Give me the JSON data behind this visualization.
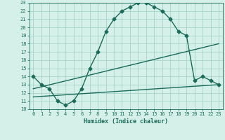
{
  "line1_x": [
    0,
    1,
    2,
    3,
    4,
    5,
    6,
    7,
    8,
    9,
    10,
    11,
    12,
    13,
    14,
    15,
    16,
    17,
    18,
    19,
    20,
    21,
    22,
    23
  ],
  "line1_y": [
    14,
    13,
    12.5,
    11,
    10.5,
    11,
    12.5,
    15,
    17,
    19.5,
    21,
    22,
    22.5,
    23,
    23,
    22.5,
    22,
    21,
    19.5,
    19,
    13.5,
    14,
    13.5,
    13
  ],
  "line2_x": [
    0,
    23
  ],
  "line2_y": [
    12.5,
    18
  ],
  "line3_x": [
    0,
    23
  ],
  "line3_y": [
    11.5,
    13
  ],
  "line_color": "#1a6b5a",
  "bg_color": "#d4f0e8",
  "grid_color": "#a0cfc0",
  "xlabel": "Humidex (Indice chaleur)",
  "xlim": [
    -0.5,
    23.5
  ],
  "ylim": [
    10,
    23
  ],
  "xticks": [
    0,
    1,
    2,
    3,
    4,
    5,
    6,
    7,
    8,
    9,
    10,
    11,
    12,
    13,
    14,
    15,
    16,
    17,
    18,
    19,
    20,
    21,
    22,
    23
  ],
  "yticks": [
    10,
    11,
    12,
    13,
    14,
    15,
    16,
    17,
    18,
    19,
    20,
    21,
    22,
    23
  ],
  "marker": "D",
  "marker_size": 2.5,
  "line_width": 1.0
}
